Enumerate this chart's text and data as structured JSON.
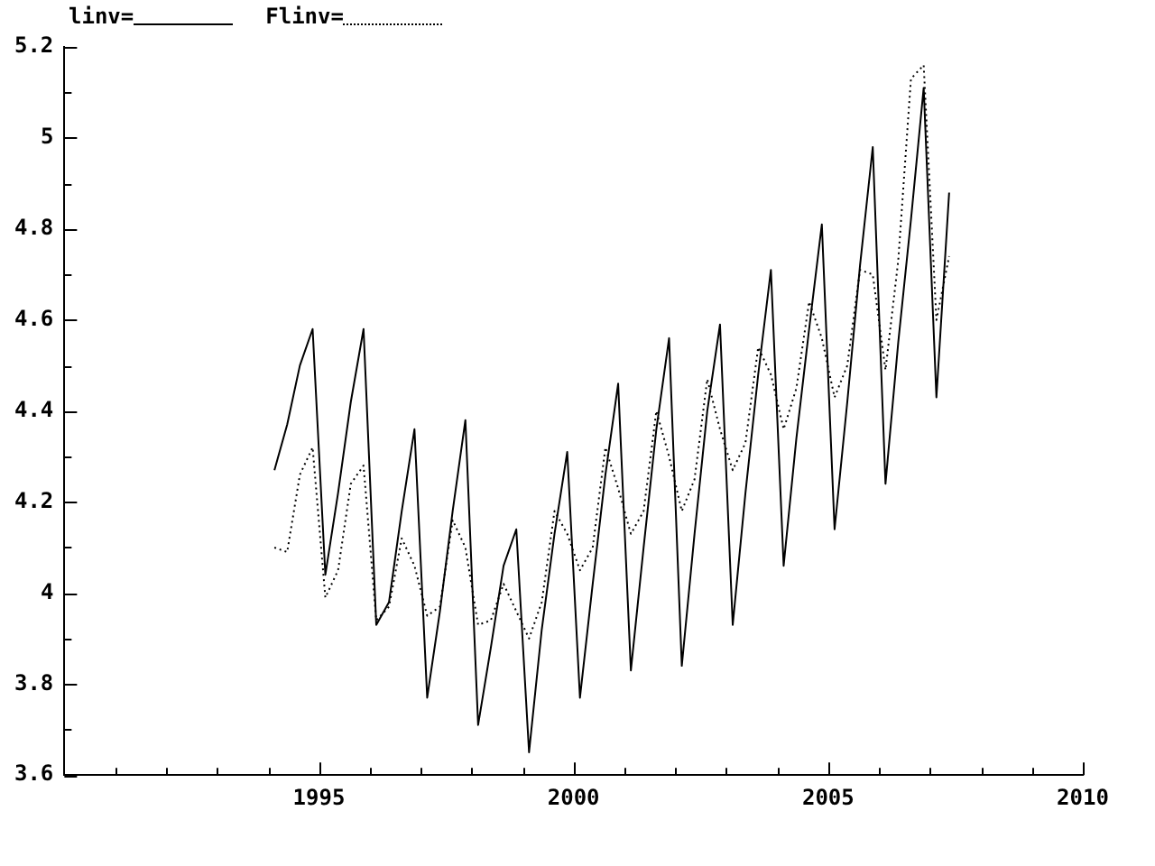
{
  "chart_data": {
    "type": "line",
    "x": [
      1994.125,
      1994.375,
      1994.625,
      1994.875,
      1995.125,
      1995.375,
      1995.625,
      1995.875,
      1996.125,
      1996.375,
      1996.625,
      1996.875,
      1997.125,
      1997.375,
      1997.625,
      1997.875,
      1998.125,
      1998.375,
      1998.625,
      1998.875,
      1999.125,
      1999.375,
      1999.625,
      1999.875,
      2000.125,
      2000.375,
      2000.625,
      2000.875,
      2001.125,
      2001.375,
      2001.625,
      2001.875,
      2002.125,
      2002.375,
      2002.625,
      2002.875,
      2003.125,
      2003.375,
      2003.625,
      2003.875,
      2004.125,
      2004.375,
      2004.625,
      2004.875,
      2005.125,
      2005.375,
      2005.625,
      2005.875,
      2006.125,
      2006.375,
      2006.625,
      2006.875,
      2007.125,
      2007.375
    ],
    "series": [
      {
        "name": "linv=",
        "color": "#000000",
        "line_style": "solid",
        "values": [
          4.27,
          4.37,
          4.5,
          4.58,
          4.04,
          4.22,
          4.42,
          4.58,
          3.93,
          3.98,
          4.18,
          4.36,
          3.77,
          3.96,
          4.18,
          4.38,
          3.71,
          3.88,
          4.06,
          4.14,
          3.65,
          3.92,
          4.13,
          4.31,
          3.77,
          4.02,
          4.26,
          4.46,
          3.83,
          4.1,
          4.36,
          4.56,
          3.84,
          4.13,
          4.4,
          4.59,
          3.93,
          4.22,
          4.48,
          4.71,
          4.06,
          4.34,
          4.58,
          4.81,
          4.14,
          4.42,
          4.72,
          4.98,
          4.24,
          4.55,
          4.82,
          5.11,
          4.43,
          4.88
        ]
      },
      {
        "name": "Flinv=",
        "color": "#000000",
        "line_style": "dotted",
        "values": [
          4.1,
          4.09,
          4.26,
          4.32,
          3.99,
          4.05,
          4.24,
          4.28,
          3.94,
          3.97,
          4.12,
          4.06,
          3.95,
          3.97,
          4.16,
          4.1,
          3.93,
          3.94,
          4.02,
          3.96,
          3.9,
          3.98,
          4.18,
          4.13,
          4.05,
          4.1,
          4.32,
          4.23,
          4.13,
          4.18,
          4.4,
          4.3,
          4.18,
          4.25,
          4.47,
          4.36,
          4.27,
          4.33,
          4.54,
          4.48,
          4.36,
          4.45,
          4.64,
          4.56,
          4.43,
          4.5,
          4.71,
          4.7,
          4.49,
          4.73,
          5.13,
          5.16,
          4.6,
          4.74
        ]
      }
    ],
    "xlim": [
      1990,
      2010
    ],
    "xticks": [
      {
        "value": 1991,
        "label": null
      },
      {
        "value": 1992,
        "label": null
      },
      {
        "value": 1993,
        "label": null
      },
      {
        "value": 1994,
        "label": null
      },
      1995,
      {
        "value": 1996,
        "label": null
      },
      {
        "value": 1997,
        "label": null
      },
      {
        "value": 1998,
        "label": null
      },
      {
        "value": 1999,
        "label": null
      },
      2000,
      {
        "value": 2001,
        "label": null
      },
      {
        "value": 2002,
        "label": null
      },
      {
        "value": 2003,
        "label": null
      },
      {
        "value": 2004,
        "label": null
      },
      2005,
      {
        "value": 2006,
        "label": null
      },
      {
        "value": 2007,
        "label": null
      },
      {
        "value": 2008,
        "label": null
      },
      {
        "value": 2009,
        "label": null
      },
      2010
    ],
    "ylim": [
      3.6,
      5.2
    ],
    "yticks": [
      3.6,
      {
        "value": 3.7,
        "label": null
      },
      3.8,
      {
        "value": 3.9,
        "label": null
      },
      4,
      {
        "value": 4.1,
        "label": null
      },
      4.2,
      {
        "value": 4.3,
        "label": null
      },
      4.4,
      {
        "value": 4.5,
        "label": null
      },
      4.6,
      {
        "value": 4.7,
        "label": null
      },
      4.8,
      {
        "value": 4.9,
        "label": null
      },
      5,
      {
        "value": 5.1,
        "label": null
      },
      5.2
    ],
    "grid": false,
    "legend": "top left",
    "marker": "none"
  }
}
